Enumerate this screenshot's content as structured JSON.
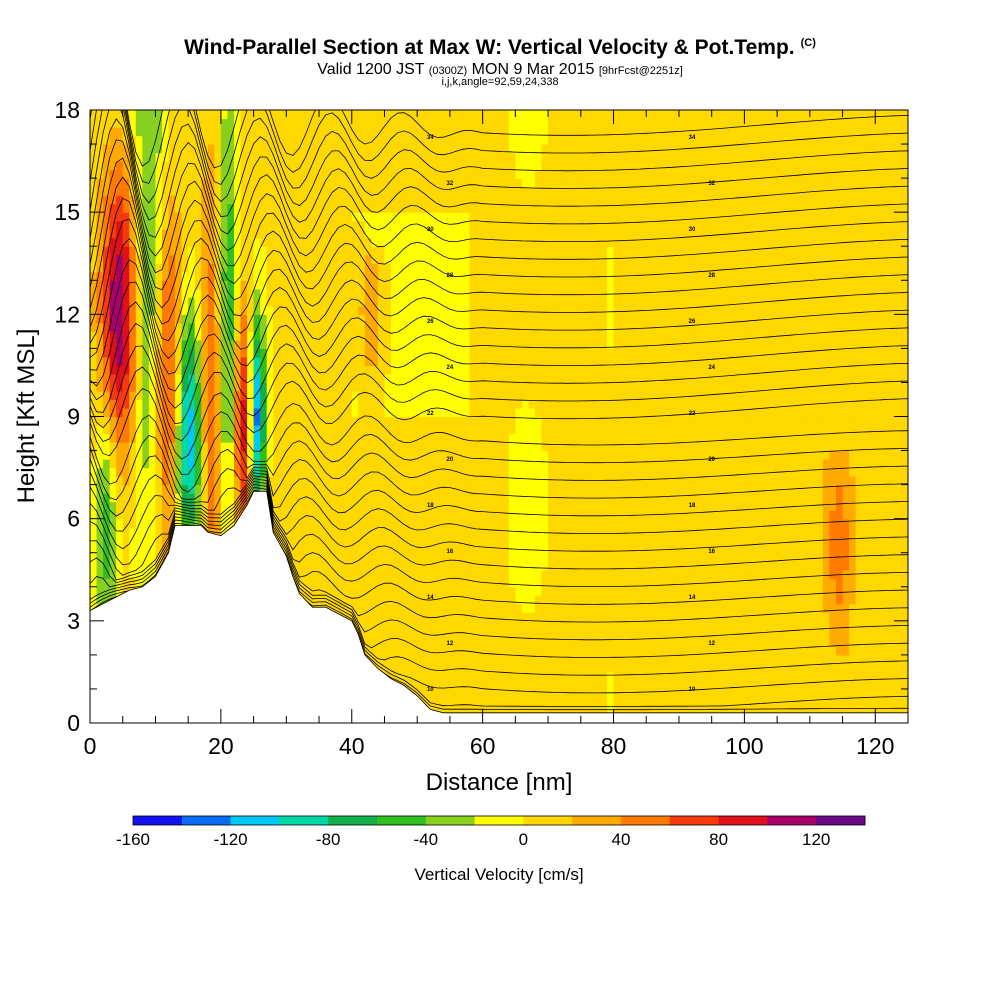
{
  "header": {
    "title": "Wind-Parallel Section at Max W: Vertical Velocity & Pot.Temp.",
    "title_mark": "(C)",
    "valid_prefix": "Valid 1200 JST",
    "valid_utc": "(0300Z)",
    "valid_date": "MON 9 Mar 2015",
    "forecast": "[9hrFcst@2251z]",
    "indices": "i,j,k,angle=92,59,24,338"
  },
  "chart_data": {
    "type": "heatmap",
    "title": "Wind-Parallel Section at Max W: Vertical Velocity & Pot.Temp.",
    "xlabel": "Distance [nm]",
    "ylabel": "Height [Kft MSL]",
    "xlim": [
      0,
      125
    ],
    "ylim": [
      0,
      18
    ],
    "x_ticks": [
      0,
      20,
      40,
      60,
      80,
      100,
      120
    ],
    "y_ticks": [
      0,
      3,
      6,
      9,
      12,
      15,
      18
    ],
    "colorbar": {
      "title": "Vertical Velocity [cm/s]",
      "ticks": [
        -160,
        -120,
        -80,
        -40,
        0,
        40,
        80,
        120
      ],
      "min": -160,
      "max": 140,
      "step": 20,
      "colors": [
        "#1010f0",
        "#0a6cf2",
        "#00c8f5",
        "#00d8a8",
        "#12b048",
        "#2fbf20",
        "#88d020",
        "#ffff00",
        "#ffd800",
        "#ffaa00",
        "#ff7a00",
        "#f53a10",
        "#e0101a",
        "#a8006a",
        "#6a0a8a"
      ]
    },
    "terrain": [
      [
        0,
        3.3
      ],
      [
        2,
        3.5
      ],
      [
        4,
        3.7
      ],
      [
        6,
        3.9
      ],
      [
        8,
        4.0
      ],
      [
        10,
        4.3
      ],
      [
        12,
        5.0
      ],
      [
        13,
        5.8
      ],
      [
        17,
        5.8
      ],
      [
        18,
        5.6
      ],
      [
        20,
        5.5
      ],
      [
        22,
        5.8
      ],
      [
        24,
        6.4
      ],
      [
        25,
        6.8
      ],
      [
        27,
        6.8
      ],
      [
        28,
        5.6
      ],
      [
        30,
        4.9
      ],
      [
        31,
        4.3
      ],
      [
        32,
        3.8
      ],
      [
        34,
        3.4
      ],
      [
        36,
        3.4
      ],
      [
        38,
        3.2
      ],
      [
        40,
        3.0
      ],
      [
        41,
        2.6
      ],
      [
        42,
        2.0
      ],
      [
        44,
        1.6
      ],
      [
        46,
        1.3
      ],
      [
        48,
        1.1
      ],
      [
        50,
        0.8
      ],
      [
        52,
        0.4
      ],
      [
        54,
        0.3
      ],
      [
        125,
        0.3
      ]
    ],
    "updraft_bands": [
      {
        "x": 4.5,
        "w": 2.0,
        "y0": 0,
        "y1": 18,
        "value": 110,
        "ycenter": 12.0,
        "yspread": 3.0
      },
      {
        "x": 12.0,
        "w": 1.6,
        "y0": 0,
        "y1": 18,
        "value": 80,
        "ycenter": 10.0,
        "yspread": 3.5
      },
      {
        "x": 18.5,
        "w": 1.2,
        "y0": 0,
        "y1": 18,
        "value": 60,
        "ycenter": 10.0,
        "yspread": 4.0
      },
      {
        "x": 23.5,
        "w": 1.0,
        "y0": 0,
        "y1": 18,
        "value": 90,
        "ycenter": 9.0,
        "yspread": 2.5
      },
      {
        "x": 114.5,
        "w": 1.5,
        "y0": 2,
        "y1": 8,
        "value": 40,
        "ycenter": 5.0,
        "yspread": 2.5
      },
      {
        "x": 43.0,
        "w": 1.2,
        "y0": 8,
        "y1": 14,
        "value": 40,
        "ycenter": 12.0,
        "yspread": 1.5
      }
    ],
    "downdraft_bands": [
      {
        "x": 2.5,
        "w": 1.2,
        "value": -60,
        "ycenter": 6.0,
        "yspread": 2.5
      },
      {
        "x": 9.0,
        "w": 1.8,
        "value": -60,
        "ycenter": 13.0,
        "yspread": 5.0
      },
      {
        "x": 15.0,
        "w": 1.4,
        "value": -130,
        "ycenter": 8.5,
        "yspread": 2.5
      },
      {
        "x": 21.0,
        "w": 1.0,
        "value": -60,
        "ycenter": 12.0,
        "yspread": 6.0
      },
      {
        "x": 25.5,
        "w": 0.9,
        "value": -140,
        "ycenter": 9.0,
        "yspread": 2.0
      }
    ],
    "theta_contours": {
      "levels": [
        10,
        12,
        14,
        16,
        18,
        20,
        22,
        24,
        26,
        28,
        30,
        32,
        34
      ],
      "labels": [
        "10",
        "12",
        "14",
        "16",
        "18",
        "20",
        "22",
        "24",
        "26",
        "28",
        "30",
        "32",
        "34"
      ]
    }
  }
}
